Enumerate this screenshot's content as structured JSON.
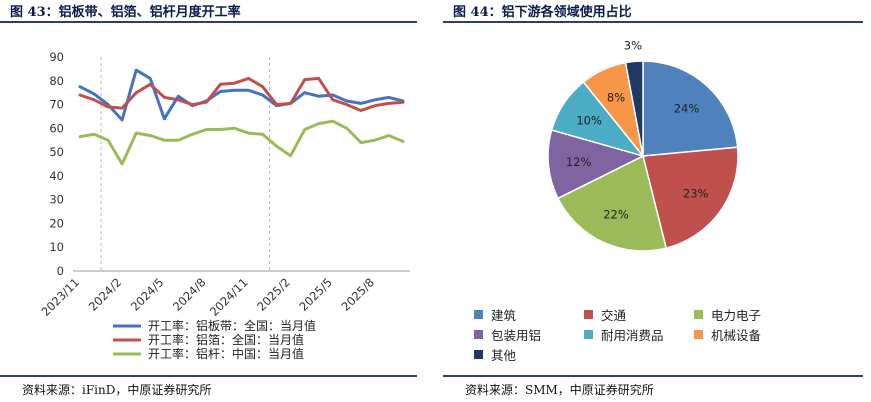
{
  "left": {
    "title": "图 43：铝板带、铝箔、铝杆月度开工率",
    "source": "资料来源：iFinD，中原证券研究所"
  },
  "right": {
    "title": "图 44：铝下游各领域使用占比",
    "source": "资料来源：SMM，中原证券研究所"
  },
  "chart_data": [
    {
      "type": "line",
      "title": "图 43：铝板带、铝箔、铝杆月度开工率",
      "xlabel": "",
      "ylabel": "",
      "ylim": [
        0,
        90
      ],
      "yticks": [
        0,
        10,
        20,
        30,
        40,
        50,
        60,
        70,
        80,
        90
      ],
      "xtick_labels": [
        "2023/11",
        "2024/2",
        "2024/5",
        "2024/8",
        "2024/11",
        "2025/2",
        "2025/5",
        "2025/8"
      ],
      "x": [
        "2023/11",
        "2023/12",
        "2024/1",
        "2024/2",
        "2024/3",
        "2024/4",
        "2024/5",
        "2024/6",
        "2024/7",
        "2024/8",
        "2024/9",
        "2024/10",
        "2024/11",
        "2024/12",
        "2025/1",
        "2025/2",
        "2025/3",
        "2025/4",
        "2025/5",
        "2025/6",
        "2025/7",
        "2025/8",
        "2025/9",
        "2025/10"
      ],
      "grid": "vertical-dashed",
      "legend": "bottom",
      "series": [
        {
          "name": "开工率：铝板带：全国：当月值",
          "color": "#4472c4",
          "values": [
            77.5,
            74.5,
            70,
            63.5,
            84.5,
            81,
            64,
            73.5,
            69.5,
            71.5,
            75.5,
            76,
            76,
            74,
            69.5,
            70.5,
            75,
            73.5,
            74,
            71.5,
            70.5,
            72,
            73,
            71.5
          ]
        },
        {
          "name": "开工率：铝箔：全国：当月值",
          "color": "#c0504d",
          "values": [
            74,
            72,
            69,
            68.5,
            75,
            78.5,
            73,
            72,
            70,
            71,
            78.5,
            79,
            81,
            77.5,
            70,
            70.5,
            80.5,
            81,
            72,
            70,
            67.5,
            69.5,
            70.5,
            71
          ]
        },
        {
          "name": "开工率：铝杆：中国：当月值",
          "color": "#9bbb59",
          "values": [
            56.5,
            57.5,
            55,
            45,
            58,
            57,
            55,
            55,
            57.5,
            59.5,
            59.5,
            60,
            58,
            57.5,
            52.5,
            48.5,
            59.5,
            62,
            63,
            60,
            54,
            55,
            57,
            54.5
          ]
        }
      ]
    },
    {
      "type": "pie",
      "title": "图 44：铝下游各领域使用占比",
      "legend": "bottom",
      "slices": [
        {
          "name": "建筑",
          "value": 24,
          "label": "24%",
          "color": "#4f81bd"
        },
        {
          "name": "交通",
          "value": 23,
          "label": "23%",
          "color": "#c0504d"
        },
        {
          "name": "电力电子",
          "value": 22,
          "label": "22%",
          "color": "#9bbb59"
        },
        {
          "name": "包装用铝",
          "value": 12,
          "label": "12%",
          "color": "#8064a2"
        },
        {
          "name": "耐用消费品",
          "value": 10,
          "label": "10%",
          "color": "#4bacc6"
        },
        {
          "name": "机械设备",
          "value": 8,
          "label": "8%",
          "color": "#f79646"
        },
        {
          "name": "其他",
          "value": 3,
          "label": "3%",
          "color": "#1f3864"
        }
      ]
    }
  ]
}
